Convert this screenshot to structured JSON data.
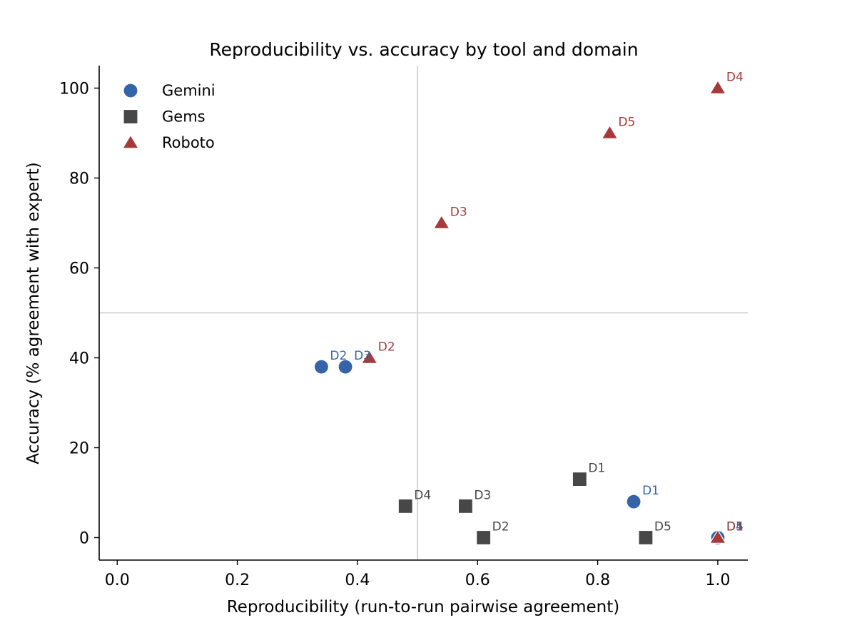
{
  "chart_data": {
    "type": "scatter",
    "title": "Reproducibility vs. accuracy by tool and domain",
    "xlabel": "Reproducibility  (run-to-run pairwise agreement)",
    "ylabel": "Accuracy  (% agreement with expert)",
    "xlim": [
      -0.03,
      1.05
    ],
    "ylim": [
      -5,
      105
    ],
    "xticks": [
      0.0,
      0.2,
      0.4,
      0.6,
      0.8,
      1.0
    ],
    "xtick_labels": [
      "0.0",
      "0.2",
      "0.4",
      "0.6",
      "0.8",
      "1.0"
    ],
    "yticks": [
      0,
      20,
      40,
      60,
      80,
      100
    ],
    "ytick_labels": [
      "0",
      "20",
      "40",
      "60",
      "80",
      "100"
    ],
    "reference_lines": {
      "x": 0.5,
      "y": 50
    },
    "grid": false,
    "legend_position": "top-left",
    "series": [
      {
        "name": "Gemini",
        "marker": "circle",
        "color": "#3565a8",
        "points": [
          {
            "label": "D1",
            "x": 0.86,
            "y": 8
          },
          {
            "label": "D2",
            "x": 0.34,
            "y": 38
          },
          {
            "label": "D3",
            "x": 0.38,
            "y": 38
          },
          {
            "label": "D4",
            "x": 1.0,
            "y": 0
          },
          {
            "label": "D5",
            "x": 1.0,
            "y": 0
          }
        ]
      },
      {
        "name": "Gems",
        "marker": "square",
        "color": "#474747",
        "points": [
          {
            "label": "D1",
            "x": 0.77,
            "y": 13
          },
          {
            "label": "D2",
            "x": 0.61,
            "y": 0
          },
          {
            "label": "D3",
            "x": 0.58,
            "y": 7
          },
          {
            "label": "D4",
            "x": 0.48,
            "y": 7
          },
          {
            "label": "D5",
            "x": 0.88,
            "y": 0
          }
        ]
      },
      {
        "name": "Roboto",
        "marker": "triangle",
        "color": "#a63a3a",
        "points": [
          {
            "label": "D1",
            "x": 1.0,
            "y": 0
          },
          {
            "label": "D2",
            "x": 0.42,
            "y": 40
          },
          {
            "label": "D3",
            "x": 0.54,
            "y": 70
          },
          {
            "label": "D4",
            "x": 1.0,
            "y": 100
          },
          {
            "label": "D5",
            "x": 0.82,
            "y": 90
          }
        ]
      }
    ]
  }
}
